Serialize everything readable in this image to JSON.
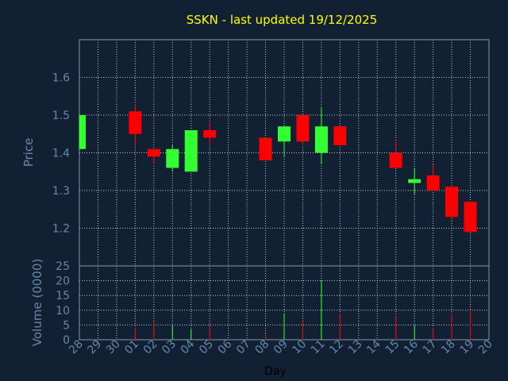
{
  "chart_data": {
    "type": "candlestick",
    "title": "SSKN - last updated 19/12/2025",
    "xlabel": "Day",
    "price": {
      "ylabel": "Price",
      "ylim": [
        1.1,
        1.7
      ],
      "yticks": [
        "1.2",
        "1.3",
        "1.4",
        "1.5",
        "1.6"
      ]
    },
    "volume": {
      "ylabel": "Volume (0000)",
      "ylim": [
        0,
        25
      ],
      "yticks": [
        "0",
        "5",
        "10",
        "15",
        "20",
        "25"
      ]
    },
    "x_ticks": [
      "28",
      "29",
      "30",
      "01",
      "02",
      "03",
      "04",
      "05",
      "06",
      "07",
      "08",
      "09",
      "10",
      "11",
      "12",
      "13",
      "14",
      "15",
      "16",
      "17",
      "18",
      "19",
      "20"
    ],
    "grid": true,
    "colors": {
      "up": "#33ff33",
      "down": "#ff0000",
      "title": "#ffff00",
      "axis_text": "#6688aa",
      "grid": "#ffffff",
      "background": "#112033"
    },
    "candles": [
      {
        "day": "28",
        "open": 1.41,
        "high": 1.5,
        "low": 1.41,
        "close": 1.5,
        "volume": 0
      },
      {
        "day": "01",
        "open": 1.51,
        "high": 1.53,
        "low": 1.42,
        "close": 1.45,
        "volume": 4
      },
      {
        "day": "02",
        "open": 1.41,
        "high": 1.41,
        "low": 1.37,
        "close": 1.39,
        "volume": 6
      },
      {
        "day": "03",
        "open": 1.36,
        "high": 1.42,
        "low": 1.35,
        "close": 1.41,
        "volume": 5
      },
      {
        "day": "04",
        "open": 1.35,
        "high": 1.46,
        "low": 1.35,
        "close": 1.46,
        "volume": 3.5
      },
      {
        "day": "05",
        "open": 1.46,
        "high": 1.48,
        "low": 1.42,
        "close": 1.44,
        "volume": 4.5
      },
      {
        "day": "08",
        "open": 1.44,
        "high": 1.44,
        "low": 1.38,
        "close": 1.38,
        "volume": 2
      },
      {
        "day": "09",
        "open": 1.43,
        "high": 1.47,
        "low": 1.39,
        "close": 1.47,
        "volume": 9
      },
      {
        "day": "10",
        "open": 1.5,
        "high": 1.5,
        "low": 1.42,
        "close": 1.43,
        "volume": 6
      },
      {
        "day": "11",
        "open": 1.4,
        "high": 1.52,
        "low": 1.37,
        "close": 1.47,
        "volume": 20
      },
      {
        "day": "12",
        "open": 1.47,
        "high": 1.47,
        "low": 1.42,
        "close": 1.42,
        "volume": 9
      },
      {
        "day": "15",
        "open": 1.4,
        "high": 1.43,
        "low": 1.36,
        "close": 1.36,
        "volume": 8
      },
      {
        "day": "16",
        "open": 1.32,
        "high": 1.36,
        "low": 1.29,
        "close": 1.33,
        "volume": 5
      },
      {
        "day": "17",
        "open": 1.34,
        "high": 1.37,
        "low": 1.3,
        "close": 1.3,
        "volume": 4
      },
      {
        "day": "18",
        "open": 1.31,
        "high": 1.31,
        "low": 1.22,
        "close": 1.23,
        "volume": 9
      },
      {
        "day": "19",
        "open": 1.27,
        "high": 1.27,
        "low": 1.19,
        "close": 1.19,
        "volume": 10
      }
    ]
  }
}
